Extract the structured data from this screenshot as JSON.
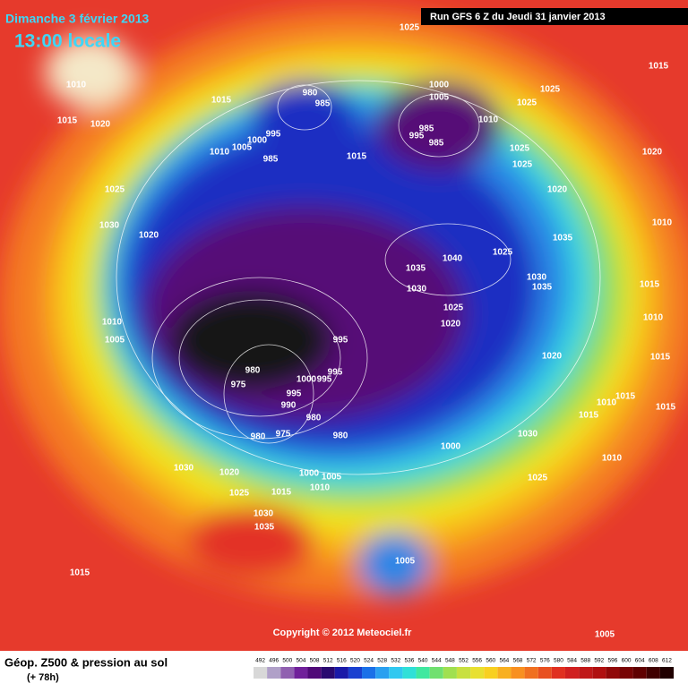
{
  "header": {
    "date": "Dimanche 3 février 2013",
    "time": "13:00 locale",
    "run": "Run GFS 6 Z du Jeudi 31 janvier 2013"
  },
  "isobar_labels": [
    1025,
    1010,
    1015,
    1020,
    1015,
    980,
    985,
    995,
    1000,
    1005,
    1010,
    985,
    1015,
    1000,
    1005,
    1010,
    985,
    995,
    985,
    1025,
    1025,
    1015,
    1025,
    1025,
    1020,
    1020,
    1025,
    1030,
    1020,
    1010,
    1035,
    1040,
    1025,
    1035,
    1030,
    1035,
    1030,
    1025,
    1020,
    1015,
    1010,
    1015,
    1010,
    1005,
    995,
    1020,
    980,
    975,
    1000,
    995,
    995,
    995,
    990,
    980,
    1015,
    1015,
    1010,
    1015,
    980,
    975,
    980,
    1030,
    1000,
    1010,
    1030,
    1020,
    1000,
    1005,
    1010,
    1025,
    1015,
    1025,
    1030,
    1035,
    1005,
    1015,
    1005
  ],
  "footer": {
    "copyright": "Copyright © 2012 Meteociel.fr",
    "legend_title": "Géop. Z500 & pression au sol",
    "lead_time": "(+ 78h)",
    "scale": [
      492,
      496,
      500,
      504,
      508,
      512,
      516,
      520,
      524,
      528,
      532,
      536,
      540,
      544,
      548,
      552,
      556,
      560,
      564,
      568,
      572,
      576,
      580,
      584,
      588,
      592,
      596,
      600,
      604,
      608,
      612
    ]
  }
}
